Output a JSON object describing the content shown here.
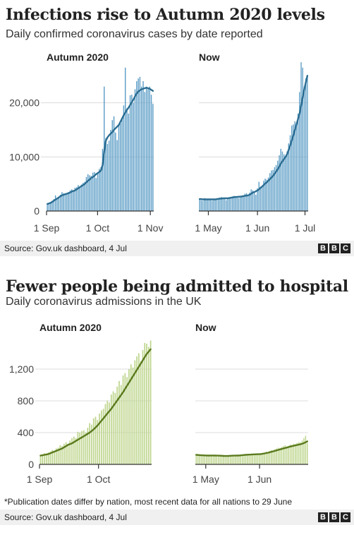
{
  "chart_data": [
    {
      "type": "bar",
      "title": "Infections rise to Autumn 2020 levels",
      "subtitle": "Daily confirmed coronavirus cases by date reported",
      "ylim": [
        0,
        27000
      ],
      "yticks": [
        0,
        10000,
        20000
      ],
      "ytick_labels": [
        "0",
        "10,000",
        "20,000"
      ],
      "bar_color": "#5c9dc6",
      "line_color": "#2b6d92",
      "panels": [
        {
          "label": "Autumn 2020",
          "x_start": "2020-09-01",
          "x_end": "2020-11-03",
          "xtick_labels": [
            "1 Sep",
            "1 Oct",
            "1 Nov"
          ],
          "xtick_dates": [
            "2020-09-01",
            "2020-10-01",
            "2020-11-01"
          ],
          "series": [
            {
              "type": "bar",
              "values": [
                1300,
                1500,
                1700,
                1900,
                2200,
                2900,
                2400,
                2600,
                3000,
                3500,
                3300,
                3000,
                3300,
                3500,
                3800,
                4000,
                3700,
                4300,
                4400,
                4800,
                4400,
                4900,
                5200,
                5400,
                6300,
                6800,
                6600,
                6500,
                7100,
                7200,
                6100,
                7100,
                7800,
                8100,
                11500,
                23000,
                13500,
                12400,
                13000,
                15000,
                16800,
                17500,
                14500,
                13100,
                16000,
                16200,
                17000,
                19500,
                26500,
                19000,
                18000,
                21400,
                21500,
                20000,
                22500,
                24000,
                24500,
                24800,
                23000,
                24000,
                22000,
                23000,
                22500,
                23000,
                21500,
                19800
              ]
            },
            {
              "type": "line",
              "values": [
                1300,
                1400,
                1500,
                1700,
                1900,
                2100,
                2300,
                2500,
                2700,
                2900,
                3000,
                3100,
                3200,
                3300,
                3400,
                3600,
                3700,
                3800,
                4000,
                4200,
                4400,
                4600,
                4800,
                5000,
                5300,
                5600,
                5800,
                6100,
                6300,
                6500,
                6800,
                7000,
                7200,
                7500,
                8500,
                11000,
                13000,
                13600,
                14000,
                14300,
                14600,
                15000,
                15300,
                15600,
                15900,
                16500,
                17100,
                17700,
                18200,
                18700,
                19100,
                19600,
                20100,
                20600,
                21200,
                21700,
                22100,
                22300,
                22500,
                22600,
                22700,
                22800,
                22700,
                22600,
                22400,
                22200
              ]
            }
          ]
        },
        {
          "label": "Now",
          "x_start": "2021-04-25",
          "x_end": "2021-07-03",
          "xtick_labels": [
            "1 May",
            "1 Jun",
            "1 Jul"
          ],
          "xtick_dates": [
            "2021-05-01",
            "2021-06-01",
            "2021-07-01"
          ],
          "series": [
            {
              "type": "bar",
              "values": [
                2100,
                2000,
                1900,
                2400,
                2300,
                2200,
                2100,
                2000,
                1900,
                2200,
                2100,
                2300,
                2400,
                2500,
                2600,
                2400,
                2200,
                2000,
                2300,
                2500,
                2600,
                2700,
                2800,
                2700,
                2500,
                2400,
                2600,
                2700,
                2900,
                3200,
                3300,
                2800,
                3400,
                4000,
                3800,
                3500,
                3000,
                4200,
                5400,
                4500,
                4700,
                5600,
                6000,
                5800,
                6200,
                7000,
                7500,
                7600,
                8100,
                8500,
                9300,
                10300,
                11500,
                11000,
                10500,
                10000,
                11000,
                12500,
                14000,
                15800,
                16000,
                16600,
                16200,
                18000,
                22000,
                27500,
                26500,
                23000,
                24500,
                25000
              ]
            },
            {
              "type": "line",
              "values": [
                2200,
                2200,
                2150,
                2150,
                2150,
                2150,
                2150,
                2150,
                2150,
                2150,
                2150,
                2200,
                2250,
                2300,
                2300,
                2350,
                2350,
                2350,
                2350,
                2400,
                2450,
                2500,
                2550,
                2600,
                2600,
                2650,
                2650,
                2700,
                2750,
                2800,
                2850,
                2900,
                3000,
                3200,
                3400,
                3500,
                3650,
                3800,
                4000,
                4300,
                4500,
                4800,
                5100,
                5300,
                5600,
                5900,
                6200,
                6500,
                6900,
                7300,
                7700,
                8200,
                8800,
                9200,
                9600,
                10000,
                10500,
                11300,
                12100,
                13000,
                14000,
                15000,
                16000,
                17000,
                18000,
                19500,
                21000,
                22500,
                23800,
                25000
              ]
            }
          ]
        }
      ],
      "source": "Source: Gov.uk dashboard, 4 Jul"
    },
    {
      "type": "bar",
      "title": "Fewer people being admitted to hospital",
      "subtitle": "Daily coronavirus admissions in the UK",
      "ylim": [
        0,
        1600
      ],
      "yticks": [
        0,
        400,
        800,
        1200
      ],
      "ytick_labels": [
        "0",
        "400",
        "800",
        "1,200"
      ],
      "bar_color": "#bfd68f",
      "line_color": "#5a7a1e",
      "panels": [
        {
          "label": "Autumn 2020",
          "x_start": "2020-09-01",
          "x_end": "2020-10-28",
          "xtick_labels": [
            "1 Sep",
            "1 Oct"
          ],
          "xtick_dates": [
            "2020-09-01",
            "2020-10-01"
          ],
          "series": [
            {
              "type": "bar",
              "values": [
                100,
                120,
                140,
                130,
                150,
                160,
                180,
                170,
                200,
                210,
                240,
                230,
                260,
                280,
                260,
                300,
                330,
                350,
                330,
                410,
                400,
                420,
                430,
                400,
                460,
                520,
                500,
                580,
                600,
                560,
                640,
                680,
                700,
                760,
                800,
                780,
                880,
                920,
                900,
                980,
                1050,
                1000,
                1120,
                1150,
                1100,
                1200,
                1260,
                1220,
                1310,
                1360,
                1400,
                1300,
                1440,
                1530,
                1520,
                1480,
                1560
              ]
            },
            {
              "type": "line",
              "values": [
                110,
                115,
                120,
                125,
                130,
                140,
                150,
                160,
                170,
                180,
                190,
                200,
                215,
                230,
                245,
                255,
                265,
                280,
                295,
                310,
                325,
                340,
                355,
                370,
                385,
                400,
                420,
                440,
                465,
                490,
                520,
                550,
                580,
                610,
                640,
                670,
                700,
                735,
                770,
                805,
                840,
                875,
                910,
                950,
                990,
                1030,
                1070,
                1110,
                1150,
                1190,
                1230,
                1270,
                1310,
                1350,
                1390,
                1420,
                1450
              ]
            }
          ]
        },
        {
          "label": "Now",
          "x_start": "2021-04-25",
          "x_end": "2021-06-29",
          "xtick_labels": [
            "1 May",
            "1 Jun"
          ],
          "xtick_dates": [
            "2021-05-01",
            "2021-06-01"
          ],
          "series": [
            {
              "type": "bar",
              "values": [
                120,
                115,
                110,
                118,
                112,
                108,
                105,
                110,
                115,
                112,
                108,
                104,
                100,
                105,
                110,
                106,
                102,
                98,
                104,
                108,
                112,
                110,
                106,
                102,
                108,
                115,
                120,
                118,
                122,
                125,
                128,
                124,
                120,
                126,
                130,
                135,
                128,
                124,
                130,
                140,
                150,
                160,
                155,
                170,
                180,
                175,
                190,
                200,
                210,
                205,
                220,
                230,
                240,
                225,
                235,
                250,
                245,
                260,
                255,
                270,
                280,
                275,
                300,
                330,
                360,
                270
              ]
            },
            {
              "type": "line",
              "values": [
                120,
                118,
                116,
                115,
                114,
                113,
                112,
                111,
                111,
                112,
                112,
                111,
                110,
                110,
                109,
                108,
                107,
                106,
                106,
                107,
                108,
                109,
                110,
                110,
                111,
                112,
                114,
                116,
                118,
                120,
                122,
                123,
                124,
                125,
                126,
                127,
                128,
                129,
                131,
                134,
                138,
                142,
                147,
                152,
                158,
                164,
                170,
                176,
                182,
                188,
                194,
                200,
                206,
                212,
                218,
                224,
                229,
                234,
                239,
                244,
                249,
                254,
                260,
                268,
                278,
                290
              ]
            }
          ]
        }
      ],
      "footnote": "*Publication dates differ by nation, most recent data for all nations to 29 June",
      "source": "Source: Gov.uk dashboard, 4 Jul"
    }
  ],
  "brand": {
    "letters": [
      "B",
      "B",
      "C"
    ]
  }
}
